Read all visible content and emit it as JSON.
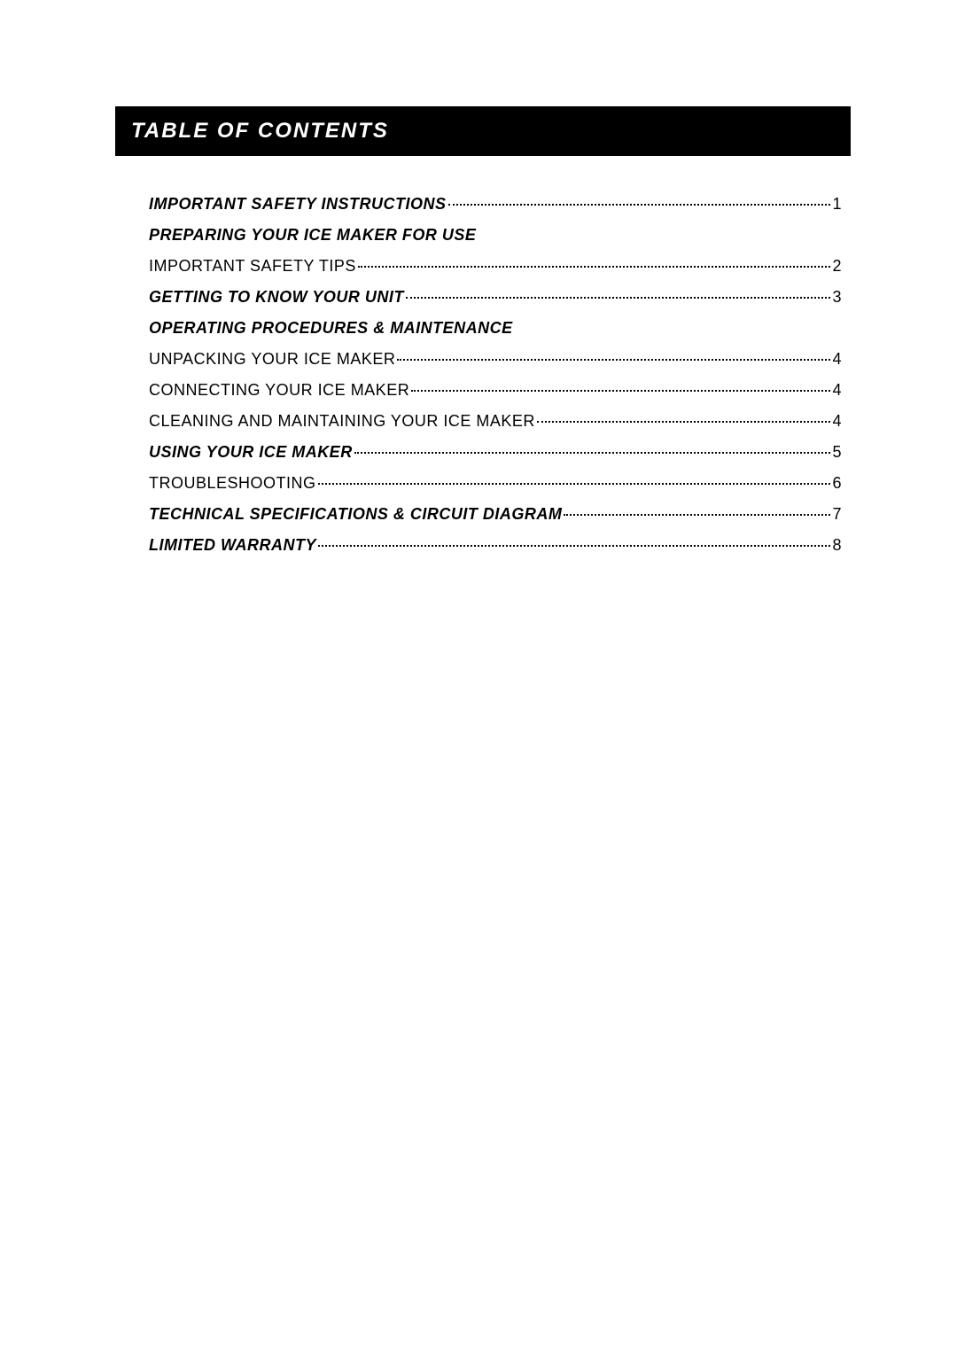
{
  "header": {
    "title": "TABLE OF CONTENTS"
  },
  "entries": [
    {
      "label": "IMPORTANT SAFETY INSTRUCTIONS",
      "page": "1",
      "style": "bold-italic",
      "has_page": true
    },
    {
      "label": "PREPARING YOUR ICE MAKER FOR USE",
      "page": "",
      "style": "bold-italic",
      "has_page": false
    },
    {
      "label": "IMPORTANT SAFETY TIPS",
      "page": "2",
      "style": "normal",
      "has_page": true
    },
    {
      "label": "GETTING TO KNOW YOUR UNIT",
      "page": "3",
      "style": "bold-italic",
      "has_page": true
    },
    {
      "label": "OPERATING PROCEDURES & MAINTENANCE",
      "page": "",
      "style": "bold-italic",
      "has_page": false
    },
    {
      "label": "UNPACKING YOUR ICE MAKER ",
      "page": "4",
      "style": "normal",
      "has_page": true
    },
    {
      "label": "CONNECTING YOUR ICE MAKER",
      "page": "4",
      "style": "normal",
      "has_page": true
    },
    {
      "label": "CLEANING AND MAINTAINING YOUR ICE MAKER",
      "page": "4",
      "style": "normal",
      "has_page": true
    },
    {
      "label": "USING YOUR ICE MAKER",
      "page": "5",
      "style": "bold-italic",
      "has_page": true
    },
    {
      "label": "TROUBLESHOOTING",
      "page": "6",
      "style": "normal",
      "has_page": true
    },
    {
      "label": "TECHNICAL SPECIFICATIONS & CIRCUIT DIAGRAM",
      "page": "7",
      "style": "bold-italic",
      "has_page": true
    },
    {
      "label": "LIMITED WARRANTY",
      "page": "8",
      "style": "bold-italic",
      "has_page": true
    }
  ],
  "colors": {
    "header_bg": "#000000",
    "header_text": "#ffffff",
    "body_text": "#000000",
    "page_bg": "#ffffff"
  },
  "typography": {
    "header_fontsize_pt": 18,
    "entry_fontsize_pt": 14
  }
}
